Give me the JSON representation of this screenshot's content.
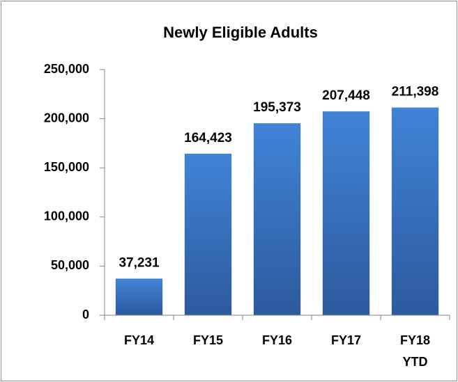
{
  "chart_data": {
    "type": "bar",
    "title": "Newly Eligible Adults",
    "categories": [
      "FY14",
      "FY15",
      "FY16",
      "FY17",
      "FY18 YTD"
    ],
    "values": [
      37231,
      164423,
      195373,
      207448,
      211398
    ],
    "value_labels": [
      "37,231",
      "164,423",
      "195,373",
      "207,448",
      "211,398"
    ],
    "color": "#3a72c2",
    "ylim": [
      0,
      250000
    ],
    "yticks": [
      0,
      {
        "value": 50000,
        "label": "50,000"
      },
      {
        "value": 100000,
        "label": "100,000"
      },
      {
        "value": 150000,
        "label": "150,000"
      },
      {
        "value": 200000,
        "label": "200,000"
      },
      {
        "value": 250000,
        "label": "250,000"
      }
    ],
    "grid": false
  }
}
